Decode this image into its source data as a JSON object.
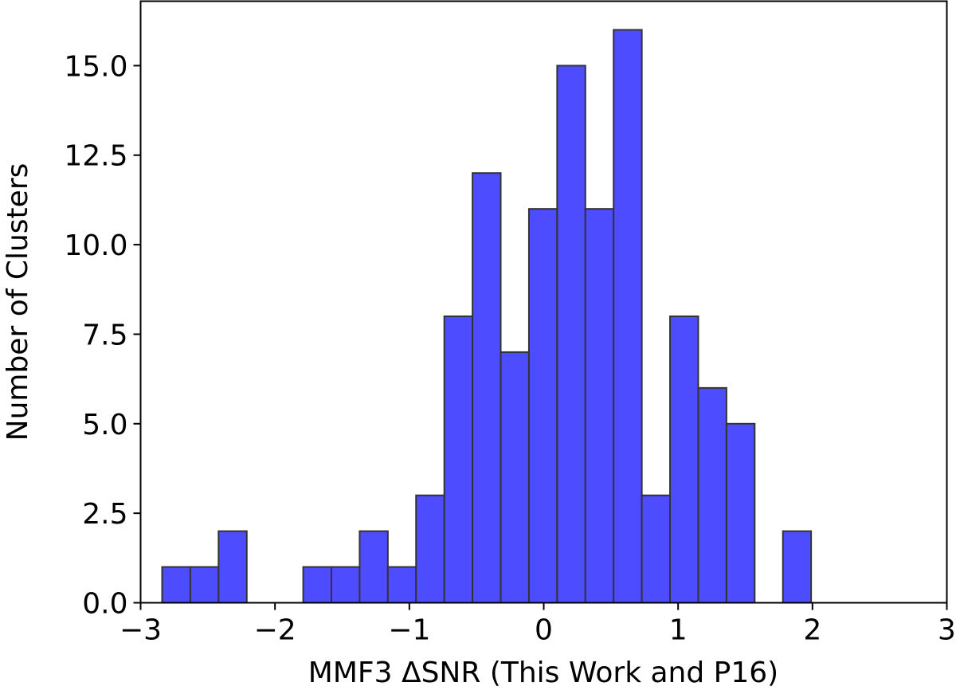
{
  "chart_data": {
    "type": "bar",
    "title": "",
    "xlabel": "MMF3 ΔSNR (This Work and P16)",
    "ylabel": "Number of Clusters",
    "xlim": [
      -3,
      3
    ],
    "ylim": [
      0,
      16.8
    ],
    "x_ticks": [
      -3,
      -2,
      -1,
      0,
      1,
      2,
      3
    ],
    "x_tick_labels": [
      "−3",
      "−2",
      "−1",
      "0",
      "1",
      "2",
      "3"
    ],
    "y_ticks": [
      0,
      2.5,
      5,
      7.5,
      10,
      12.5,
      15
    ],
    "y_tick_labels": [
      "0.0",
      "2.5",
      "5.0",
      "7.5",
      "10.0",
      "12.5",
      "15.0"
    ],
    "grid": false,
    "bar_color": "#4d4dff",
    "edge_color": "#333333",
    "bins": [
      {
        "x0": -2.84,
        "x1": -2.63,
        "count": 1
      },
      {
        "x0": -2.63,
        "x1": -2.42,
        "count": 1
      },
      {
        "x0": -2.42,
        "x1": -2.21,
        "count": 2
      },
      {
        "x0": -2.21,
        "x1": -2.0,
        "count": 0
      },
      {
        "x0": -2.0,
        "x1": -1.79,
        "count": 0
      },
      {
        "x0": -1.79,
        "x1": -1.58,
        "count": 1
      },
      {
        "x0": -1.58,
        "x1": -1.37,
        "count": 1
      },
      {
        "x0": -1.37,
        "x1": -1.16,
        "count": 2
      },
      {
        "x0": -1.16,
        "x1": -0.95,
        "count": 1
      },
      {
        "x0": -0.95,
        "x1": -0.74,
        "count": 3
      },
      {
        "x0": -0.74,
        "x1": -0.53,
        "count": 8
      },
      {
        "x0": -0.53,
        "x1": -0.32,
        "count": 12
      },
      {
        "x0": -0.32,
        "x1": -0.11,
        "count": 7
      },
      {
        "x0": -0.11,
        "x1": 0.1,
        "count": 11
      },
      {
        "x0": 0.1,
        "x1": 0.31,
        "count": 15
      },
      {
        "x0": 0.31,
        "x1": 0.52,
        "count": 11
      },
      {
        "x0": 0.52,
        "x1": 0.73,
        "count": 16
      },
      {
        "x0": 0.73,
        "x1": 0.94,
        "count": 3
      },
      {
        "x0": 0.94,
        "x1": 1.15,
        "count": 8
      },
      {
        "x0": 1.15,
        "x1": 1.36,
        "count": 6
      },
      {
        "x0": 1.36,
        "x1": 1.57,
        "count": 5
      },
      {
        "x0": 1.57,
        "x1": 1.78,
        "count": 0
      },
      {
        "x0": 1.78,
        "x1": 1.99,
        "count": 2
      }
    ]
  }
}
